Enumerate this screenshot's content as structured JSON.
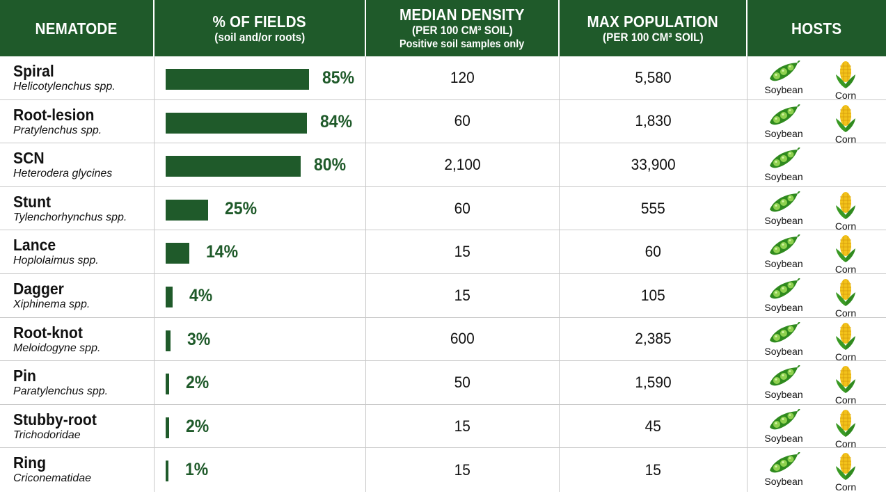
{
  "headers": {
    "nematode": "NEMATODE",
    "fields_main": "% OF FIELDS",
    "fields_sub": "(soil and/or roots)",
    "median_main": "MEDIAN DENSITY",
    "median_sub": "(PER 100 CM³ SOIL)",
    "median_sub2": "Positive soil samples only",
    "max_main": "MAX POPULATION",
    "max_sub": "(PER 100 CM³ SOIL)",
    "hosts": "HOSTS"
  },
  "host_labels": {
    "soybean": "Soybean",
    "corn": "Corn"
  },
  "colors": {
    "header_bg": "#1f5a2a",
    "bar": "#1f5a2a",
    "pct_text": "#1f5a2a",
    "soybean_pod": "#2f8a1e",
    "corn_kernel": "#f2c21a"
  },
  "chart_data": {
    "type": "table",
    "columns": [
      "NEMATODE",
      "% OF FIELDS",
      "MEDIAN DENSITY",
      "MAX POPULATION",
      "HOSTS"
    ],
    "rows": [
      {
        "name": "Spiral",
        "scientific": "Helicotylenchus spp.",
        "percent": 85,
        "percent_label": "85%",
        "median": "120",
        "max": "5,580",
        "hosts": [
          "Soybean",
          "Corn"
        ]
      },
      {
        "name": "Root-lesion",
        "scientific": "Pratylenchus spp.",
        "percent": 84,
        "percent_label": "84%",
        "median": "60",
        "max": "1,830",
        "hosts": [
          "Soybean",
          "Corn"
        ]
      },
      {
        "name": "SCN",
        "scientific": "Heterodera glycines",
        "percent": 80,
        "percent_label": "80%",
        "median": "2,100",
        "max": "33,900",
        "hosts": [
          "Soybean"
        ]
      },
      {
        "name": "Stunt",
        "scientific": "Tylenchorhynchus spp.",
        "percent": 25,
        "percent_label": "25%",
        "median": "60",
        "max": "555",
        "hosts": [
          "Soybean",
          "Corn"
        ]
      },
      {
        "name": "Lance",
        "scientific": "Hoplolaimus spp.",
        "percent": 14,
        "percent_label": "14%",
        "median": "15",
        "max": "60",
        "hosts": [
          "Soybean",
          "Corn"
        ]
      },
      {
        "name": "Dagger",
        "scientific": "Xiphinema spp.",
        "percent": 4,
        "percent_label": "4%",
        "median": "15",
        "max": "105",
        "hosts": [
          "Soybean",
          "Corn"
        ]
      },
      {
        "name": "Root-knot",
        "scientific": "Meloidogyne spp.",
        "percent": 3,
        "percent_label": "3%",
        "median": "600",
        "max": "2,385",
        "hosts": [
          "Soybean",
          "Corn"
        ]
      },
      {
        "name": "Pin",
        "scientific": "Paratylenchus spp.",
        "percent": 2,
        "percent_label": "2%",
        "median": "50",
        "max": "1,590",
        "hosts": [
          "Soybean",
          "Corn"
        ]
      },
      {
        "name": "Stubby-root",
        "scientific": "Trichodoridae",
        "percent": 2,
        "percent_label": "2%",
        "median": "15",
        "max": "45",
        "hosts": [
          "Soybean",
          "Corn"
        ]
      },
      {
        "name": "Ring",
        "scientific": "Criconematidae",
        "percent": 1,
        "percent_label": "1%",
        "median": "15",
        "max": "15",
        "hosts": [
          "Soybean",
          "Corn"
        ]
      }
    ]
  }
}
